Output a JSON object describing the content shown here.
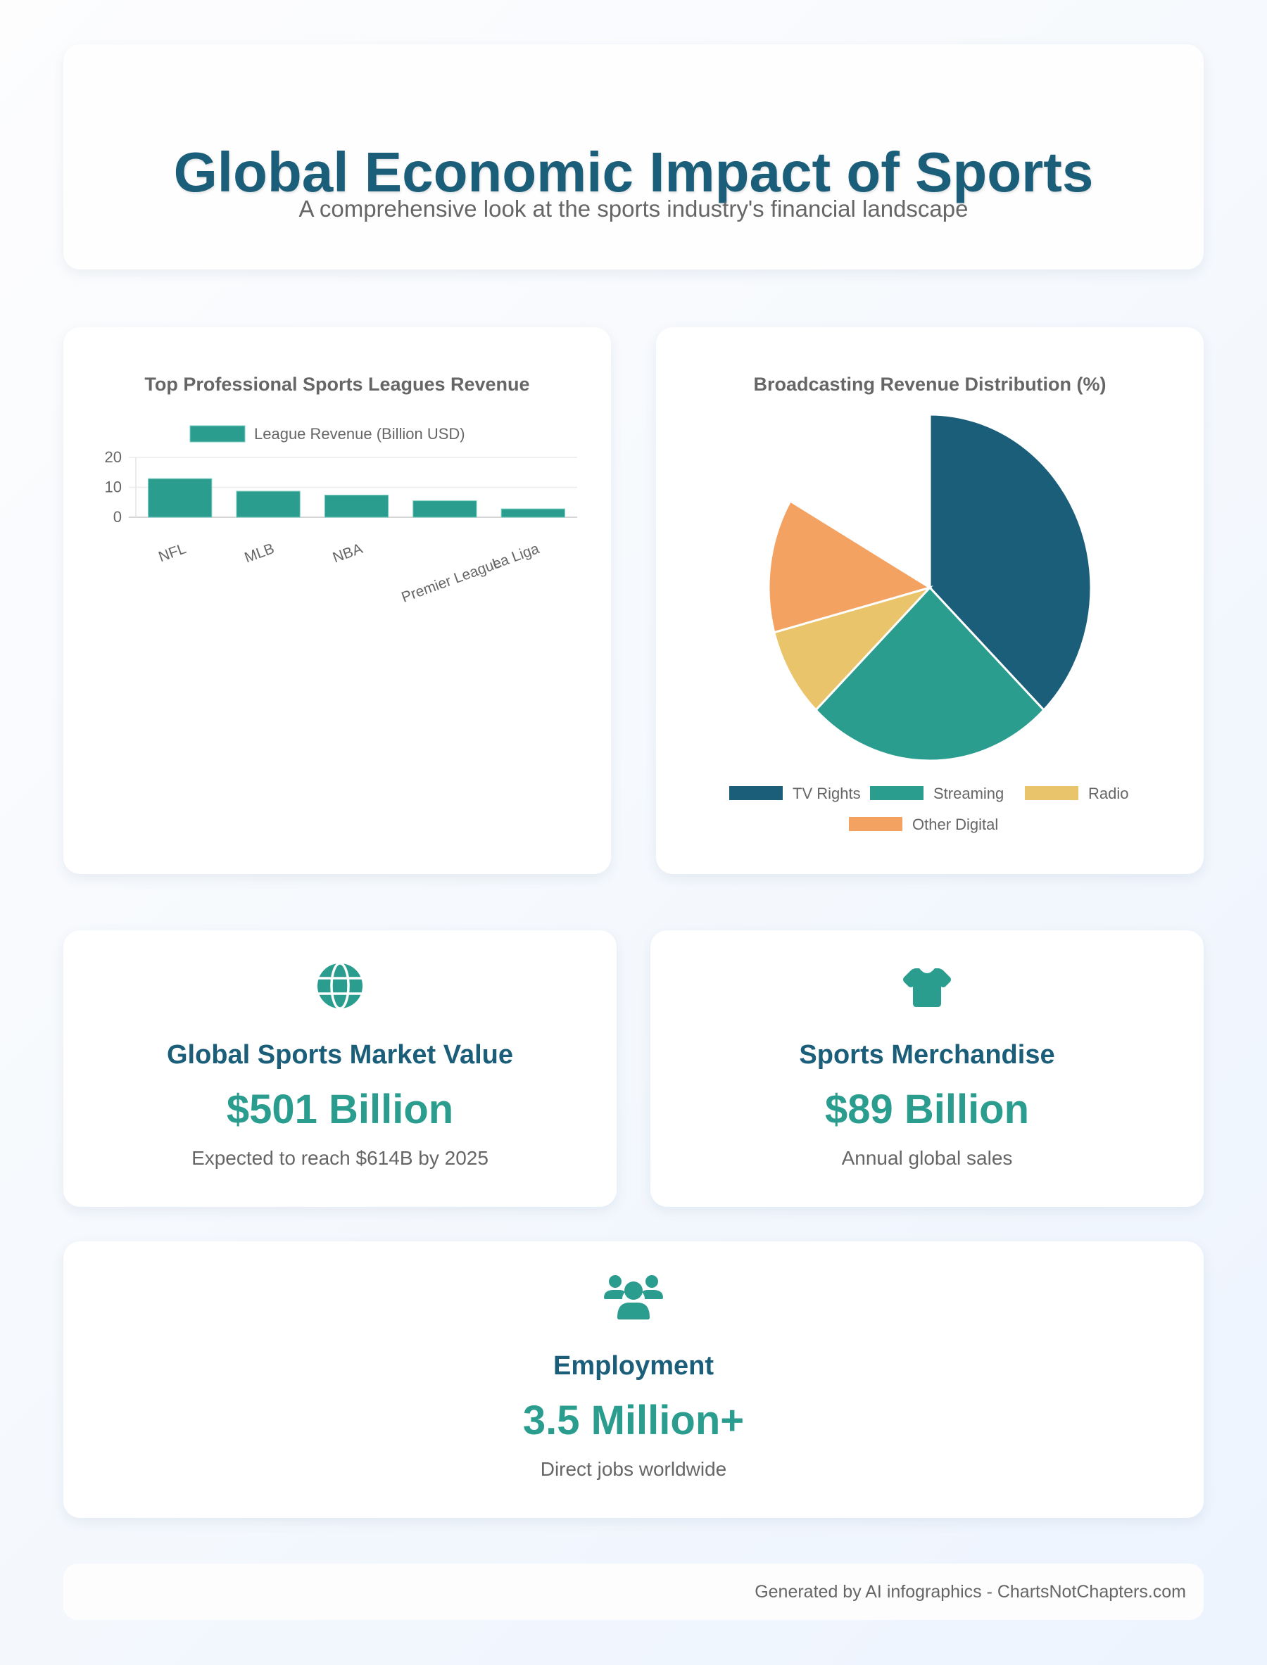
{
  "header": {
    "title": "Global Economic Impact of Sports",
    "subtitle": "A comprehensive look at the sports industry's financial landscape"
  },
  "colors": {
    "primary": "#1b5e7a",
    "accent": "#2a9d8f",
    "radio": "#e9c46a",
    "other_digital": "#f4a261",
    "text": "#666666"
  },
  "chart_data": [
    {
      "type": "bar",
      "title": "Top Professional Sports Leagues Revenue",
      "legend": [
        "League Revenue (Billion USD)"
      ],
      "legend_position": "top",
      "categories": [
        "NFL",
        "MLB",
        "NBA",
        "Premier League",
        "La Liga"
      ],
      "series": [
        {
          "name": "League Revenue (Billion USD)",
          "values": [
            12.9,
            8.7,
            7.4,
            5.5,
            2.8
          ],
          "color": "#2a9d8f"
        }
      ],
      "xlabel": "",
      "ylabel": "",
      "ylim": [
        0,
        20
      ],
      "yticks": [
        "0",
        "10",
        "20"
      ],
      "grid": true
    },
    {
      "type": "pie",
      "title": "Broadcasting Revenue Distribution (%)",
      "legend_position": "bottom",
      "categories": [
        "TV Rights",
        "Streaming",
        "Radio",
        "Other Digital"
      ],
      "values": [
        45,
        30,
        10,
        15
      ],
      "colors": [
        "#1b5e7a",
        "#2a9d8f",
        "#e9c46a",
        "#f4a261"
      ]
    }
  ],
  "stats": {
    "market": {
      "icon": "globe-icon",
      "label": "Global Sports Market Value",
      "value": "$501 Billion",
      "description": "Expected to reach $614B by 2025"
    },
    "merchandise": {
      "icon": "shirt-icon",
      "label": "Sports Merchandise",
      "value": "$89 Billion",
      "description": "Annual global sales"
    },
    "employment": {
      "icon": "users-icon",
      "label": "Employment",
      "value": "3.5 Million+",
      "description": "Direct jobs worldwide"
    }
  },
  "footer": {
    "text": "Generated by AI infographics - ChartsNotChapters.com"
  }
}
